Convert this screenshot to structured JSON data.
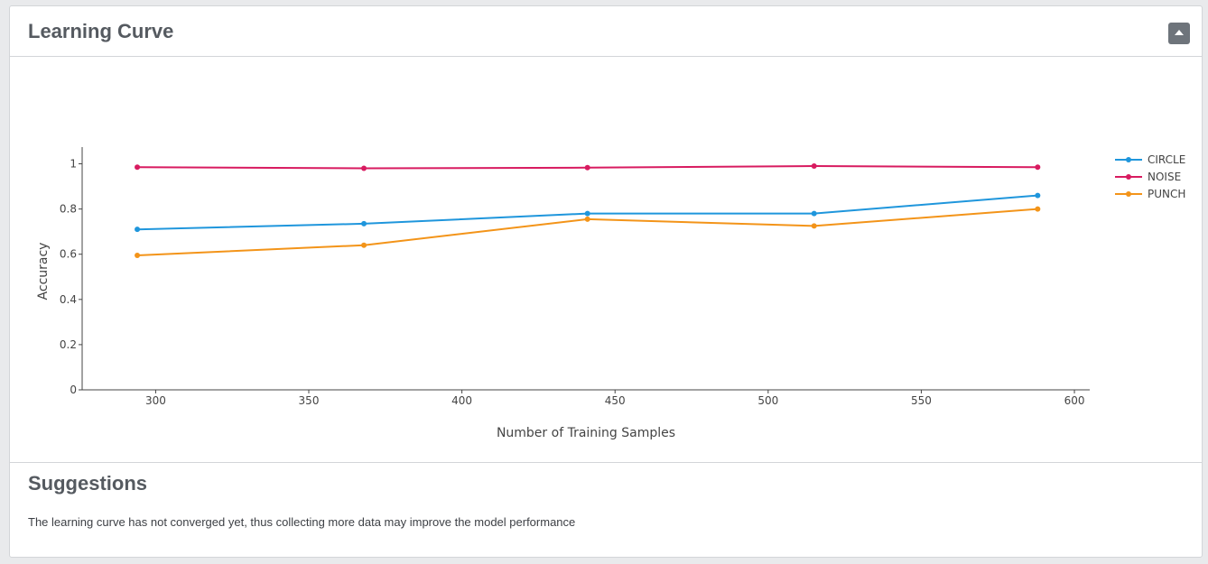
{
  "panel": {
    "title": "Learning Curve",
    "collapse_icon": "caret-up-icon"
  },
  "chart_data": {
    "type": "line",
    "title": "",
    "xlabel": "Number of Training Samples",
    "ylabel": "Accuracy",
    "xlim": [
      276,
      605
    ],
    "ylim": [
      0,
      1.05
    ],
    "x_ticks": [
      300,
      350,
      400,
      450,
      500,
      550,
      600
    ],
    "y_ticks": [
      0,
      0.2,
      0.4,
      0.6,
      0.8,
      1
    ],
    "y_tick_labels": [
      "0",
      "0.2",
      "0.4",
      "0.6",
      "0.8",
      "1"
    ],
    "grid": false,
    "legend_position": "top-right",
    "x": [
      294,
      368,
      441,
      515,
      588
    ],
    "series": [
      {
        "name": "CIRCLE",
        "color": "#1f96dc",
        "values": [
          0.71,
          0.735,
          0.78,
          0.78,
          0.86
        ]
      },
      {
        "name": "NOISE",
        "color": "#d81b60",
        "values": [
          0.985,
          0.98,
          0.983,
          0.99,
          0.985
        ]
      },
      {
        "name": "PUNCH",
        "color": "#f39419",
        "values": [
          0.595,
          0.64,
          0.755,
          0.725,
          0.8
        ]
      }
    ]
  },
  "suggestions": {
    "title": "Suggestions",
    "text": "The learning curve has not converged yet, thus collecting more data may improve the model performance"
  }
}
